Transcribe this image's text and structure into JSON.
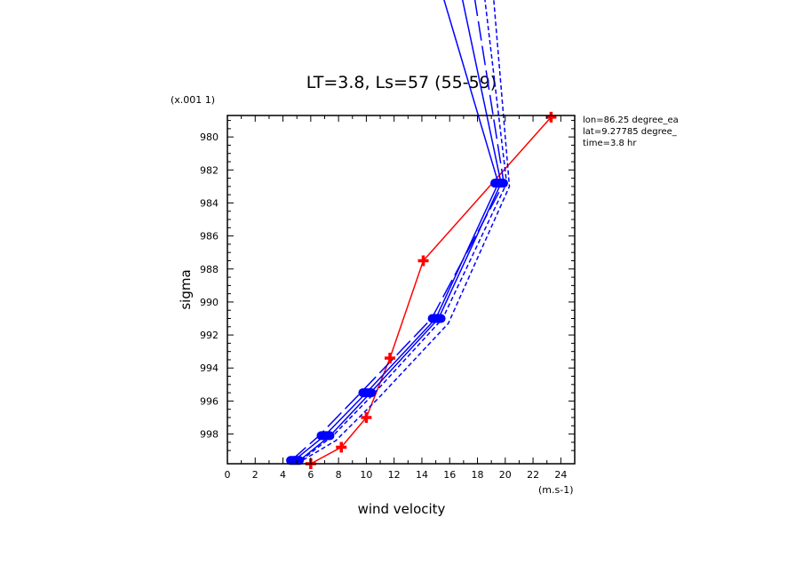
{
  "chart_data": {
    "type": "line",
    "title": "LT=3.8, Ls=57 (55-59)",
    "xlabel": "wind velocity",
    "ylabel": "sigma",
    "x_unit_label": "(m.s-1)",
    "y_scale_label": "(x.001 1)",
    "xlim": [
      0,
      25
    ],
    "ylim": [
      999.8,
      978.7
    ],
    "x_ticks": [
      0,
      2,
      4,
      6,
      8,
      10,
      12,
      14,
      16,
      18,
      20,
      22,
      24
    ],
    "y_ticks": [
      980,
      982,
      984,
      986,
      988,
      990,
      992,
      994,
      996,
      998
    ],
    "info": [
      "lon=86.25 degree_ea",
      "lat=9.27785 degree_",
      "time=3.8 hr"
    ],
    "series": [
      {
        "color": "#ff0000",
        "style": "solid",
        "marker": "plus",
        "points": [
          [
            6.0,
            999.8
          ],
          [
            8.2,
            998.8
          ],
          [
            10.0,
            997.0
          ],
          [
            11.7,
            993.4
          ],
          [
            14.1,
            987.5
          ],
          [
            23.3,
            978.8
          ]
        ]
      },
      {
        "color": "#0000ff",
        "style": "solid",
        "marker": "oval",
        "points": [
          [
            4.8,
            999.6
          ],
          [
            7.0,
            998.1
          ],
          [
            10.0,
            995.5
          ],
          [
            15.0,
            991.0
          ],
          [
            19.5,
            982.8
          ],
          [
            15.0,
            970.0
          ]
        ]
      },
      {
        "color": "#0000ff",
        "style": "solid",
        "marker": "none",
        "points": [
          [
            5.2,
            999.6
          ],
          [
            7.4,
            998.1
          ],
          [
            10.3,
            995.5
          ],
          [
            15.2,
            991.0
          ],
          [
            19.7,
            982.8
          ],
          [
            16.5,
            970.0
          ]
        ]
      },
      {
        "color": "#0000ff",
        "style": "longdash",
        "marker": "none",
        "points": [
          [
            4.6,
            999.6
          ],
          [
            6.6,
            998.1
          ],
          [
            9.6,
            995.5
          ],
          [
            14.7,
            991.0
          ],
          [
            19.9,
            982.8
          ],
          [
            17.5,
            970.0
          ]
        ]
      },
      {
        "color": "#0000ff",
        "style": "shortdash",
        "marker": "none",
        "points": [
          [
            5.3,
            999.6
          ],
          [
            7.6,
            998.1
          ],
          [
            10.6,
            995.5
          ],
          [
            15.5,
            991.0
          ],
          [
            20.1,
            982.8
          ],
          [
            18.3,
            970.0
          ]
        ]
      },
      {
        "color": "#0000ff",
        "style": "shortdash",
        "marker": "none",
        "points": [
          [
            5.0,
            999.8
          ],
          [
            7.8,
            998.4
          ],
          [
            10.9,
            995.8
          ],
          [
            15.9,
            991.3
          ],
          [
            20.3,
            983.0
          ],
          [
            19.0,
            970.0
          ]
        ]
      }
    ]
  }
}
